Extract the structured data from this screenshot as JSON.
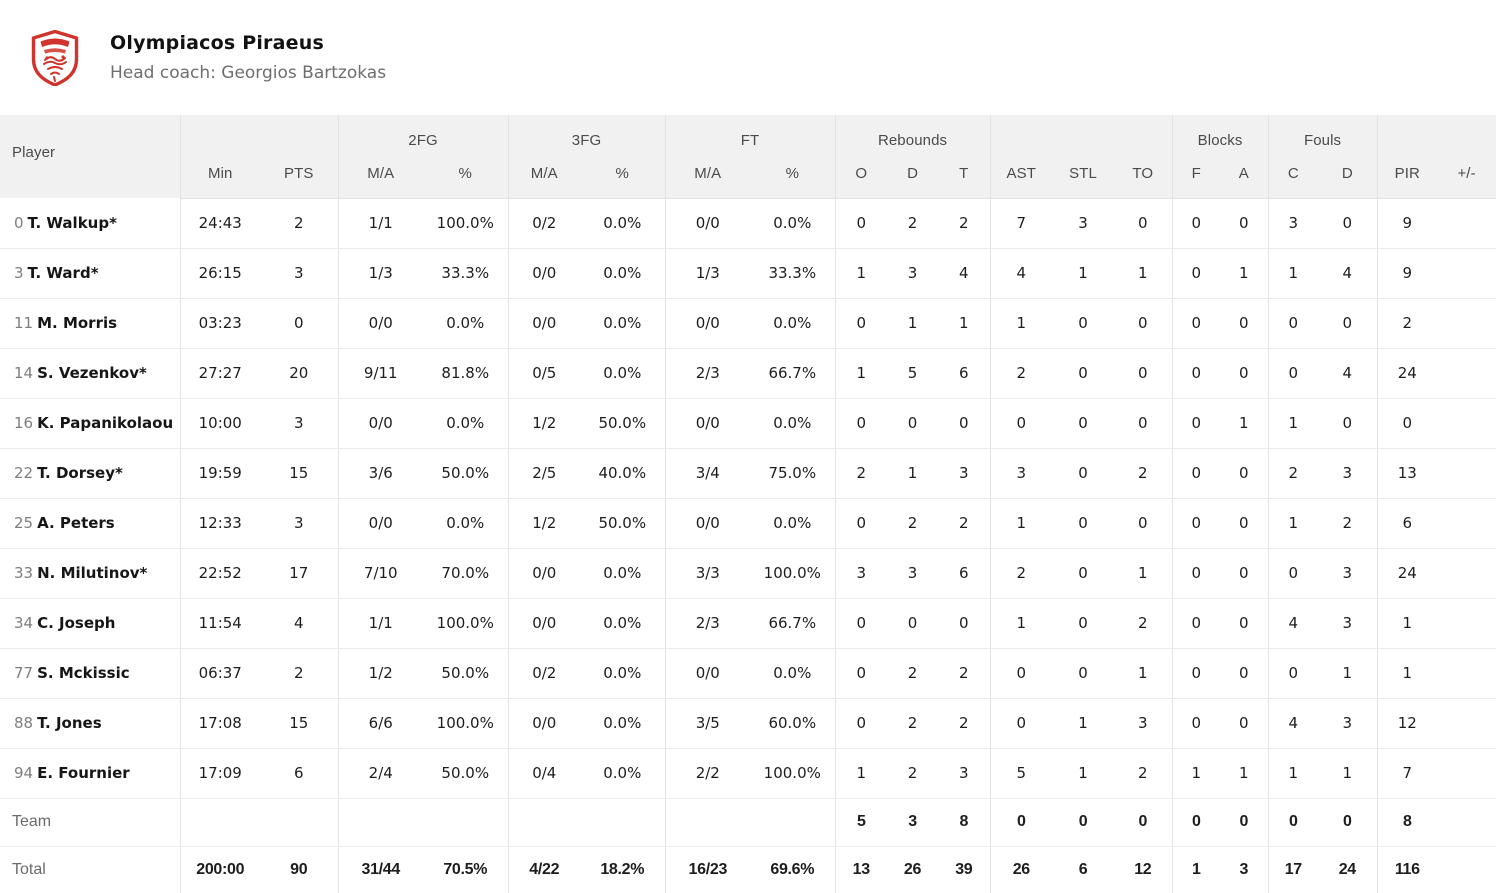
{
  "team": {
    "name": "Olympiacos Piraeus",
    "coach": "Head coach: Georgios Bartzokas",
    "logo_color": "#d0342c"
  },
  "table": {
    "groups": {
      "fg2": "2FG",
      "fg3": "3FG",
      "ft": "FT",
      "rebounds": "Rebounds",
      "blocks": "Blocks",
      "fouls": "Fouls"
    },
    "columns": [
      "Player",
      "Min",
      "PTS",
      "M/A",
      "%",
      "M/A",
      "%",
      "M/A",
      "%",
      "O",
      "D",
      "T",
      "AST",
      "STL",
      "TO",
      "F",
      "A",
      "C",
      "D",
      "PIR",
      "+/-"
    ],
    "players": [
      {
        "number": "0",
        "name": "T. Walkup*",
        "stats": [
          "24:43",
          "2",
          "1/1",
          "100.0%",
          "0/2",
          "0.0%",
          "0/0",
          "0.0%",
          "0",
          "2",
          "2",
          "7",
          "3",
          "0",
          "0",
          "0",
          "3",
          "0",
          "9",
          ""
        ]
      },
      {
        "number": "3",
        "name": "T. Ward*",
        "stats": [
          "26:15",
          "3",
          "1/3",
          "33.3%",
          "0/0",
          "0.0%",
          "1/3",
          "33.3%",
          "1",
          "3",
          "4",
          "4",
          "1",
          "1",
          "0",
          "1",
          "1",
          "4",
          "9",
          ""
        ]
      },
      {
        "number": "11",
        "name": "M. Morris",
        "stats": [
          "03:23",
          "0",
          "0/0",
          "0.0%",
          "0/0",
          "0.0%",
          "0/0",
          "0.0%",
          "0",
          "1",
          "1",
          "1",
          "0",
          "0",
          "0",
          "0",
          "0",
          "0",
          "2",
          ""
        ]
      },
      {
        "number": "14",
        "name": "S. Vezenkov*",
        "stats": [
          "27:27",
          "20",
          "9/11",
          "81.8%",
          "0/5",
          "0.0%",
          "2/3",
          "66.7%",
          "1",
          "5",
          "6",
          "2",
          "0",
          "0",
          "0",
          "0",
          "0",
          "4",
          "24",
          ""
        ]
      },
      {
        "number": "16",
        "name": "K. Papanikolaou",
        "stats": [
          "10:00",
          "3",
          "0/0",
          "0.0%",
          "1/2",
          "50.0%",
          "0/0",
          "0.0%",
          "0",
          "0",
          "0",
          "0",
          "0",
          "0",
          "0",
          "1",
          "1",
          "0",
          "0",
          ""
        ]
      },
      {
        "number": "22",
        "name": "T. Dorsey*",
        "stats": [
          "19:59",
          "15",
          "3/6",
          "50.0%",
          "2/5",
          "40.0%",
          "3/4",
          "75.0%",
          "2",
          "1",
          "3",
          "3",
          "0",
          "2",
          "0",
          "0",
          "2",
          "3",
          "13",
          ""
        ]
      },
      {
        "number": "25",
        "name": "A. Peters",
        "stats": [
          "12:33",
          "3",
          "0/0",
          "0.0%",
          "1/2",
          "50.0%",
          "0/0",
          "0.0%",
          "0",
          "2",
          "2",
          "1",
          "0",
          "0",
          "0",
          "0",
          "1",
          "2",
          "6",
          ""
        ]
      },
      {
        "number": "33",
        "name": "N. Milutinov*",
        "stats": [
          "22:52",
          "17",
          "7/10",
          "70.0%",
          "0/0",
          "0.0%",
          "3/3",
          "100.0%",
          "3",
          "3",
          "6",
          "2",
          "0",
          "1",
          "0",
          "0",
          "0",
          "3",
          "24",
          ""
        ]
      },
      {
        "number": "34",
        "name": "C. Joseph",
        "stats": [
          "11:54",
          "4",
          "1/1",
          "100.0%",
          "0/0",
          "0.0%",
          "2/3",
          "66.7%",
          "0",
          "0",
          "0",
          "1",
          "0",
          "2",
          "0",
          "0",
          "4",
          "3",
          "1",
          ""
        ]
      },
      {
        "number": "77",
        "name": "S. Mckissic",
        "stats": [
          "06:37",
          "2",
          "1/2",
          "50.0%",
          "0/2",
          "0.0%",
          "0/0",
          "0.0%",
          "0",
          "2",
          "2",
          "0",
          "0",
          "1",
          "0",
          "0",
          "0",
          "1",
          "1",
          ""
        ]
      },
      {
        "number": "88",
        "name": "T. Jones",
        "stats": [
          "17:08",
          "15",
          "6/6",
          "100.0%",
          "0/0",
          "0.0%",
          "3/5",
          "60.0%",
          "0",
          "2",
          "2",
          "0",
          "1",
          "3",
          "0",
          "0",
          "4",
          "3",
          "12",
          ""
        ]
      },
      {
        "number": "94",
        "name": "E. Fournier",
        "stats": [
          "17:09",
          "6",
          "2/4",
          "50.0%",
          "0/4",
          "0.0%",
          "2/2",
          "100.0%",
          "1",
          "2",
          "3",
          "5",
          "1",
          "2",
          "1",
          "1",
          "1",
          "1",
          "7",
          ""
        ]
      }
    ],
    "team_row": {
      "label": "Team",
      "stats": [
        "",
        "",
        "",
        "",
        "",
        "",
        "",
        "",
        "5",
        "3",
        "8",
        "0",
        "0",
        "0",
        "0",
        "0",
        "0",
        "0",
        "8",
        ""
      ]
    },
    "total_row": {
      "label": "Total",
      "stats": [
        "200:00",
        "90",
        "31/44",
        "70.5%",
        "4/22",
        "18.2%",
        "16/23",
        "69.6%",
        "13",
        "26",
        "39",
        "26",
        "6",
        "12",
        "1",
        "3",
        "17",
        "24",
        "116",
        ""
      ]
    }
  }
}
